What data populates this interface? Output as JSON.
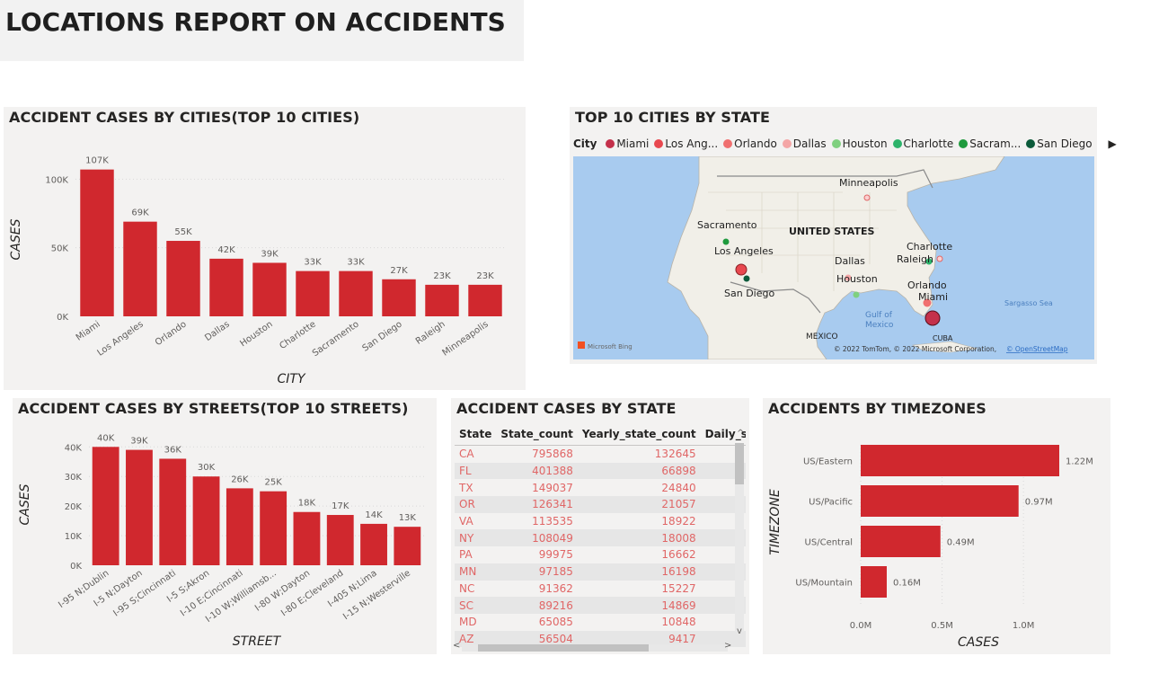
{
  "header": {
    "title": "LOCATIONS REPORT ON ACCIDENTS"
  },
  "cities_chart": {
    "title": "ACCIDENT CASES BY CITIES(TOP 10 CITIES)",
    "chart_data": {
      "type": "bar",
      "categories": [
        "Miami",
        "Los Angeles",
        "Orlando",
        "Dallas",
        "Houston",
        "Charlotte",
        "Sacramento",
        "San Diego",
        "Raleigh",
        "Minneapolis"
      ],
      "values": [
        107,
        69,
        55,
        42,
        39,
        33,
        33,
        27,
        23,
        23
      ],
      "labels": [
        "107K",
        "69K",
        "55K",
        "42K",
        "39K",
        "33K",
        "33K",
        "27K",
        "23K",
        "23K"
      ],
      "xlabel": "CITY",
      "ylabel": "CASES",
      "yticks": [
        "0K",
        "50K",
        "100K"
      ],
      "ytick_values": [
        0,
        50,
        100
      ],
      "ylim": [
        0,
        112
      ]
    },
    "color": "#d0282e"
  },
  "map_panel": {
    "title": "TOP 10 CITIES BY STATE",
    "legend_title": "City",
    "legend_items": [
      {
        "label": "Miami",
        "color": "#c4314b"
      },
      {
        "label": "Los Ang...",
        "color": "#e8484f"
      },
      {
        "label": "Orlando",
        "color": "#f07070"
      },
      {
        "label": "Dallas",
        "color": "#f4a6a6"
      },
      {
        "label": "Houston",
        "color": "#7fd07f"
      },
      {
        "label": "Charlotte",
        "color": "#2db36b"
      },
      {
        "label": "Sacram...",
        "color": "#1f9a3d"
      },
      {
        "label": "San Diego",
        "color": "#0b5a3a"
      }
    ],
    "legend_more": "▶",
    "labels": {
      "minneapolis": "Minneapolis",
      "sacramento": "Sacramento",
      "united_states": "UNITED STATES",
      "charlotte": "Charlotte",
      "raleigh": "Raleigh",
      "los_angeles": "Los Angeles",
      "dallas": "Dallas",
      "houston": "Houston",
      "orlando": "Orlando",
      "miami": "Miami",
      "san_diego": "San Diego",
      "gulf": "Gulf of",
      "mexico_water": "Mexico",
      "sargasso": "Sargasso Sea",
      "mexico": "MEXICO",
      "cuba": "CUBA"
    },
    "bing": "Microsoft Bing",
    "copyright": "© 2022 TomTom, © 2022 Microsoft Corporation,",
    "osm": "© OpenStreetMap"
  },
  "streets_chart": {
    "title": "ACCIDENT CASES BY STREETS(TOP 10 STREETS)",
    "chart_data": {
      "type": "bar",
      "categories": [
        "I-95 N;Dublin",
        "I-5 N;Dayton",
        "I-95 S;Cincinnati",
        "I-5 S;Akron",
        "I-10 E;Cincinnati",
        "I-10 W;Williamsb...",
        "I-80 W;Dayton",
        "I-80 E;Cleveland",
        "I-405 N;Lima",
        "I-15 N;Westerville"
      ],
      "values": [
        40,
        39,
        36,
        30,
        26,
        25,
        18,
        17,
        14,
        13
      ],
      "labels": [
        "40K",
        "39K",
        "36K",
        "30K",
        "26K",
        "25K",
        "18K",
        "17K",
        "14K",
        "13K"
      ],
      "xlabel": "STREET",
      "ylabel": "CASES",
      "yticks": [
        "0K",
        "10K",
        "20K",
        "30K",
        "40K"
      ],
      "ytick_values": [
        0,
        10,
        20,
        30,
        40
      ],
      "ylim": [
        0,
        41
      ]
    },
    "color": "#d0282e"
  },
  "state_table": {
    "title": "ACCIDENT CASES BY STATE",
    "columns": [
      "State",
      "State_count",
      "Yearly_state_count",
      "Daily_sta"
    ],
    "rows": [
      [
        "CA",
        "795868",
        "132645"
      ],
      [
        "FL",
        "401388",
        "66898"
      ],
      [
        "TX",
        "149037",
        "24840"
      ],
      [
        "OR",
        "126341",
        "21057"
      ],
      [
        "VA",
        "113535",
        "18922"
      ],
      [
        "NY",
        "108049",
        "18008"
      ],
      [
        "PA",
        "99975",
        "16662"
      ],
      [
        "MN",
        "97185",
        "16198"
      ],
      [
        "NC",
        "91362",
        "15227"
      ],
      [
        "SC",
        "89216",
        "14869"
      ],
      [
        "MD",
        "65085",
        "10848"
      ],
      [
        "AZ",
        "56504",
        "9417"
      ]
    ]
  },
  "timezone_chart": {
    "title": "ACCIDENTS BY TIMEZONES",
    "chart_data": {
      "type": "bar",
      "orientation": "horizontal",
      "categories": [
        "US/Eastern",
        "US/Pacific",
        "US/Central",
        "US/Mountain"
      ],
      "values": [
        1.22,
        0.97,
        0.49,
        0.16
      ],
      "labels": [
        "1.22M",
        "0.97M",
        "0.49M",
        "0.16M"
      ],
      "xlabel": "CASES",
      "ylabel": "TIMEZONE",
      "xticks": [
        "0.0M",
        "0.5M",
        "1.0M"
      ],
      "xtick_values": [
        0,
        0.5,
        1.0
      ],
      "xlim": [
        0,
        1.22
      ]
    },
    "color": "#d0282e"
  }
}
